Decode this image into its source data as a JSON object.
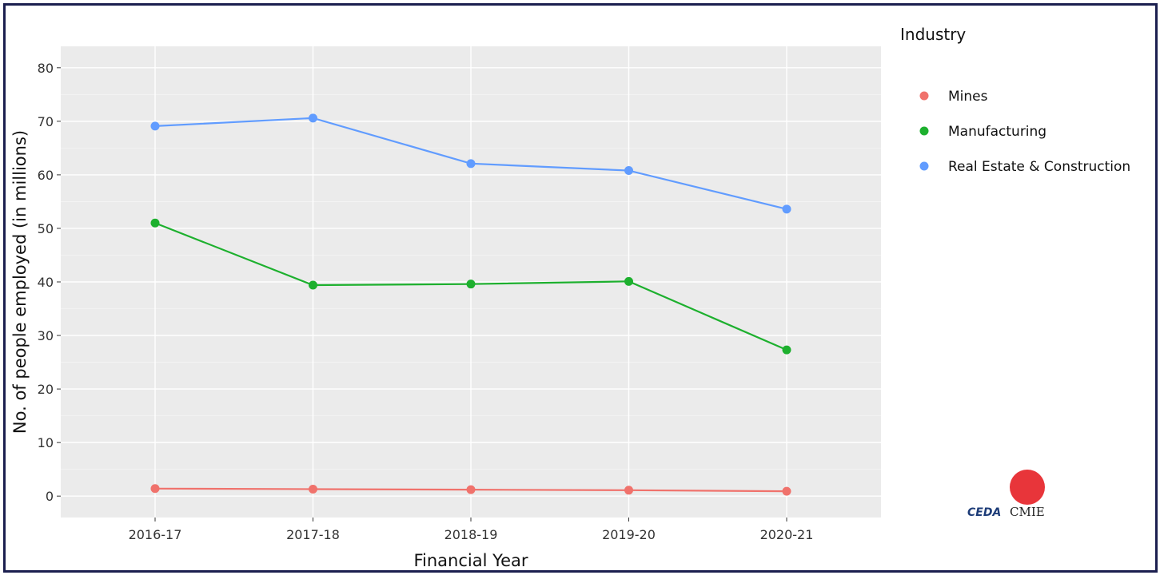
{
  "chart_data": {
    "type": "line",
    "title": "",
    "xlabel": "Financial Year",
    "ylabel": "No. of people employed (in millions)",
    "categories": [
      "2016-17",
      "2017-18",
      "2018-19",
      "2019-20",
      "2020-21"
    ],
    "ylim": [
      -4,
      84
    ],
    "yticks": [
      0,
      10,
      20,
      30,
      40,
      50,
      60,
      70,
      80
    ],
    "grid": true,
    "legend": {
      "title": "Industry",
      "placement": "right"
    },
    "series": [
      {
        "name": "Mines",
        "color": "#F0726C",
        "values": [
          1.4,
          1.3,
          1.2,
          1.1,
          0.9
        ]
      },
      {
        "name": "Manufacturing",
        "color": "#1DB02E",
        "values": [
          51.0,
          39.4,
          39.6,
          40.1,
          27.3
        ]
      },
      {
        "name": "Real Estate & Construction",
        "color": "#619CFF",
        "values": [
          69.1,
          70.6,
          62.1,
          60.8,
          53.6
        ]
      }
    ]
  },
  "logo": {
    "left_text": "CEDA",
    "right_text": "CMIE",
    "circle_color": "#E8353A"
  }
}
